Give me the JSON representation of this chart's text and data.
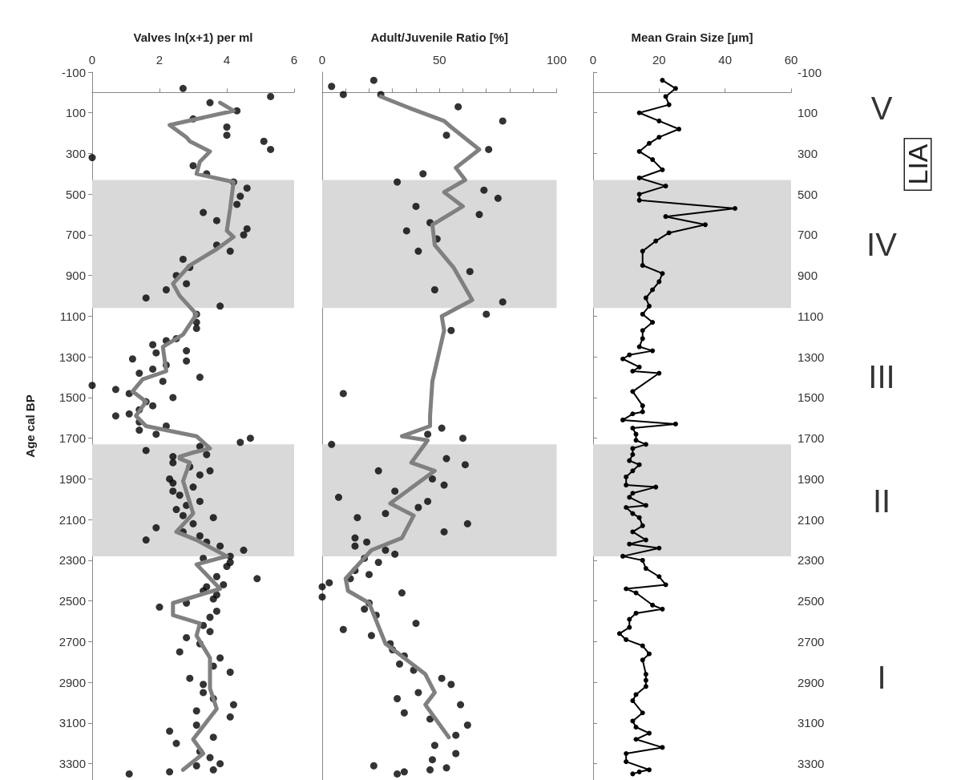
{
  "chart_data": [
    {
      "type": "scatter",
      "xlabel": "Valves ln(x+1) per ml",
      "ylabel": "Age cal BP",
      "xlim": [
        0,
        6
      ],
      "xticks": [
        0,
        2,
        4,
        6
      ],
      "ylim": [
        3380,
        -100
      ],
      "yticks": [
        -100,
        100,
        300,
        500,
        700,
        900,
        1100,
        1300,
        1500,
        1700,
        1900,
        2100,
        2300,
        2500,
        2700,
        2900,
        3100,
        3300
      ],
      "bands": [
        {
          "axis": "y",
          "from": 430,
          "to": 1060,
          "color": "#d9d9d9"
        },
        {
          "axis": "y",
          "from": 1730,
          "to": 2280,
          "color": "#d9d9d9"
        }
      ],
      "series": [
        {
          "marker": "circle",
          "color": "#000000",
          "x": [
            2.7,
            5.3,
            3.5,
            4.3,
            3.0,
            4.0,
            4.0,
            5.1,
            5.3,
            0,
            3.0,
            3.4,
            4.2,
            4.6,
            4.4,
            4.3,
            3.3,
            3.7,
            4.6,
            4.5,
            3.7,
            4.1,
            2.7,
            2.9,
            2.5,
            2.8,
            2.2,
            1.6,
            3.8,
            3.1,
            3.1,
            3.1,
            2.5,
            2.2,
            1.8,
            2.8,
            1.9,
            1.2,
            2.8,
            2.2,
            1.8,
            1.4,
            3.2,
            2.1,
            0,
            0.7,
            1.1,
            2.4,
            1.6,
            1.8,
            1.4,
            1.1,
            0.7,
            1.4,
            2.2,
            1.4,
            1.9,
            4.7,
            4.4,
            3.2,
            1.6,
            3.4,
            2.4,
            2.4,
            2.9,
            3.5,
            3.2,
            2.3,
            2.4,
            3.0,
            2.4,
            2.6,
            3.2,
            2.8,
            2.5,
            2.7,
            3.6,
            3.0,
            1.9,
            2.7,
            3.2,
            1.6,
            3.4,
            3.8,
            4.5,
            4.1,
            3.3,
            4.1,
            4.0,
            3.7,
            4.9,
            3.9,
            3.4,
            3.3,
            3.7,
            3.6,
            2.8,
            2.0,
            3.7,
            3.5,
            3.3,
            3.5,
            2.8,
            3.2,
            2.6,
            3.8,
            3.6,
            4.1,
            2.9,
            3.3,
            3.3,
            3.6,
            4.2,
            3.1,
            4.1,
            3.1,
            2.3,
            3.6,
            2.5,
            3.2,
            3.5,
            3.8,
            3.1,
            3.6,
            2.3,
            1.1
          ],
          "values": [
            -20,
            20,
            50,
            90,
            130,
            170,
            210,
            240,
            280,
            320,
            360,
            400,
            440,
            470,
            510,
            550,
            590,
            630,
            670,
            700,
            750,
            780,
            820,
            860,
            900,
            940,
            970,
            1010,
            1050,
            1090,
            1130,
            1160,
            1210,
            1220,
            1240,
            1270,
            1280,
            1310,
            1320,
            1340,
            1360,
            1380,
            1400,
            1420,
            1440,
            1460,
            1480,
            1500,
            1520,
            1540,
            1560,
            1580,
            1590,
            1620,
            1640,
            1660,
            1680,
            1700,
            1720,
            1740,
            1760,
            1780,
            1790,
            1820,
            1840,
            1860,
            1880,
            1900,
            1920,
            1940,
            1960,
            1980,
            2010,
            2030,
            2050,
            2080,
            2090,
            2120,
            2140,
            2160,
            2180,
            2200,
            2210,
            2230,
            2250,
            2280,
            2290,
            2310,
            2330,
            2380,
            2390,
            2420,
            2430,
            2450,
            2470,
            2490,
            2510,
            2530,
            2550,
            2580,
            2620,
            2650,
            2680,
            2710,
            2750,
            2780,
            2820,
            2850,
            2880,
            2910,
            2950,
            2980,
            3010,
            3040,
            3070,
            3110,
            3140,
            3170,
            3200,
            3240,
            3270,
            3300,
            3310,
            3330,
            3340,
            3350
          ]
        },
        {
          "type": "line",
          "marker": "none",
          "color": "#808080",
          "x": [
            3.8,
            4.2,
            2.3,
            2.8,
            2.9,
            3.5,
            3.2,
            3.1,
            4.2,
            4.1,
            4.0,
            4.2,
            3.7,
            2.9,
            2.4,
            2.6,
            3.1,
            2.7,
            2.1,
            2.2,
            1.5,
            1.2,
            1.6,
            1.3,
            1.6,
            3.1,
            3.5,
            3.0,
            2.6,
            2.6,
            2.9,
            2.7,
            3.0,
            2.5,
            3.1,
            4.0,
            3.1,
            3.8,
            2.4,
            2.4,
            3.2,
            3.1,
            3.5,
            3.5,
            3.7,
            3.0,
            3.3,
            2.7
          ],
          "values": [
            50,
            90,
            160,
            220,
            240,
            290,
            340,
            400,
            440,
            570,
            680,
            710,
            770,
            850,
            940,
            1000,
            1090,
            1190,
            1250,
            1370,
            1410,
            1470,
            1520,
            1590,
            1640,
            1690,
            1750,
            1770,
            1790,
            1800,
            1820,
            1910,
            2070,
            2160,
            2200,
            2280,
            2320,
            2440,
            2510,
            2570,
            2610,
            2670,
            2780,
            2930,
            3030,
            3180,
            3250,
            3330
          ]
        }
      ]
    },
    {
      "type": "scatter",
      "xlabel": "Adult/Juvenile Ratio [%]",
      "xlim": [
        0,
        100
      ],
      "xticks": [
        0,
        {
          "value": 10,
          "label": null
        },
        {
          "value": 20,
          "label": null
        },
        {
          "value": 30,
          "label": null
        },
        {
          "value": 40,
          "label": null
        },
        50,
        {
          "value": 60,
          "label": null
        },
        {
          "value": 70,
          "label": null
        },
        {
          "value": 80,
          "label": null
        },
        {
          "value": 90,
          "label": null
        },
        100
      ],
      "ylim": [
        3380,
        -100
      ],
      "tick_labels": "x",
      "bands": [
        {
          "axis": "y",
          "from": 430,
          "to": 1060,
          "color": "#d9d9d9"
        },
        {
          "axis": "y",
          "from": 1730,
          "to": 2280,
          "color": "#d9d9d9"
        }
      ],
      "series": [
        {
          "marker": "circle",
          "color": "#000000",
          "x": [
            4,
            9,
            22,
            25,
            58,
            77,
            53,
            71,
            43,
            32,
            69,
            75,
            40,
            67,
            46,
            36,
            49,
            41,
            63,
            48,
            77,
            70,
            55,
            9,
            51,
            45,
            60,
            4,
            53,
            61,
            24,
            47,
            52,
            31,
            7,
            45,
            41,
            27,
            15,
            62,
            52,
            14,
            19,
            14,
            27,
            31,
            18,
            24,
            14,
            20,
            12,
            3,
            0,
            34,
            0,
            20,
            18,
            23,
            40,
            9,
            21,
            29,
            30,
            35,
            33,
            39,
            51,
            55,
            41,
            32,
            59,
            35,
            46,
            62,
            57,
            48,
            57,
            47,
            22,
            53,
            46,
            35,
            32
          ],
          "values": [
            -30,
            10,
            -60,
            10,
            70,
            140,
            210,
            280,
            400,
            440,
            480,
            520,
            560,
            600,
            640,
            680,
            720,
            780,
            880,
            970,
            1030,
            1090,
            1170,
            1480,
            1650,
            1680,
            1700,
            1730,
            1800,
            1830,
            1860,
            1900,
            1930,
            1960,
            1990,
            2010,
            2040,
            2070,
            2090,
            2120,
            2160,
            2190,
            2210,
            2230,
            2250,
            2270,
            2290,
            2310,
            2350,
            2370,
            2390,
            2410,
            2430,
            2460,
            2480,
            2510,
            2540,
            2570,
            2610,
            2640,
            2670,
            2710,
            2740,
            2770,
            2810,
            2840,
            2880,
            2910,
            2950,
            2980,
            3010,
            3050,
            3080,
            3110,
            3160,
            3210,
            3250,
            3280,
            3310,
            3320,
            3330,
            3340,
            3350
          ]
        },
        {
          "type": "line",
          "marker": "none",
          "color": "#808080",
          "x": [
            25,
            38,
            52,
            55,
            67,
            57,
            61,
            52,
            60,
            47,
            48,
            56,
            64,
            51,
            52,
            47,
            46,
            46,
            34,
            45,
            38,
            48,
            29,
            39,
            34,
            21,
            10,
            11,
            20,
            27,
            44,
            48,
            44,
            54
          ],
          "values": [
            20,
            80,
            140,
            170,
            280,
            370,
            430,
            490,
            560,
            650,
            750,
            860,
            1020,
            1100,
            1170,
            1420,
            1590,
            1640,
            1690,
            1710,
            1820,
            1860,
            2020,
            2080,
            2190,
            2250,
            2390,
            2450,
            2510,
            2710,
            2860,
            2950,
            3010,
            3170
          ]
        }
      ]
    },
    {
      "type": "line",
      "xlabel": "Mean Grain Size [µm]",
      "xlim": [
        0,
        60
      ],
      "xticks": [
        0,
        20,
        40,
        60
      ],
      "ylim": [
        3380,
        -100
      ],
      "yticks": [
        -100,
        100,
        300,
        500,
        700,
        900,
        1100,
        1300,
        1500,
        1700,
        1900,
        2100,
        2300,
        2500,
        2700,
        2900,
        3100,
        3300
      ],
      "bands": [
        {
          "axis": "y",
          "from": 430,
          "to": 1060,
          "color": "#d9d9d9"
        },
        {
          "axis": "y",
          "from": 1730,
          "to": 2280,
          "color": "#d9d9d9"
        }
      ],
      "annotations": [
        "V",
        "IV",
        "III",
        "II",
        "I",
        "LIA"
      ],
      "series": [
        {
          "marker": "circle",
          "color": "#000000",
          "x": [
            21,
            25,
            22,
            23,
            14,
            20,
            26,
            20,
            17,
            14,
            18,
            21,
            14,
            22,
            14,
            14,
            43,
            22,
            34,
            23,
            19,
            15,
            15,
            21,
            20,
            18,
            16,
            17,
            15,
            18,
            15,
            15,
            14,
            18,
            11,
            9,
            14,
            12,
            20,
            12,
            15,
            15,
            12,
            9,
            25,
            12,
            13,
            13,
            16,
            12,
            12,
            11,
            14,
            12,
            10,
            10,
            19,
            12,
            11,
            16,
            10,
            12,
            14,
            15,
            12,
            16,
            11,
            20,
            9,
            15,
            16,
            20,
            22,
            10,
            13,
            18,
            21,
            13,
            11,
            11,
            8,
            10,
            15,
            17,
            15,
            16,
            16,
            16,
            13,
            12,
            15,
            12,
            13,
            17,
            13,
            21,
            10,
            10,
            17,
            14,
            12
          ],
          "values": [
            -60,
            -20,
            20,
            60,
            100,
            140,
            180,
            220,
            250,
            290,
            330,
            380,
            420,
            460,
            500,
            530,
            570,
            610,
            650,
            690,
            730,
            780,
            850,
            890,
            930,
            970,
            1010,
            1050,
            1090,
            1130,
            1170,
            1210,
            1250,
            1270,
            1290,
            1310,
            1350,
            1370,
            1380,
            1470,
            1540,
            1570,
            1580,
            1610,
            1630,
            1650,
            1680,
            1710,
            1730,
            1750,
            1780,
            1810,
            1830,
            1860,
            1890,
            1930,
            1940,
            1970,
            1990,
            2030,
            2040,
            2070,
            2090,
            2130,
            2160,
            2200,
            2220,
            2240,
            2280,
            2300,
            2340,
            2380,
            2420,
            2440,
            2460,
            2520,
            2540,
            2560,
            2590,
            2630,
            2660,
            2690,
            2720,
            2760,
            2790,
            2860,
            2890,
            2920,
            2960,
            2990,
            3050,
            3090,
            3120,
            3150,
            3180,
            3220,
            3250,
            3290,
            3330,
            3340,
            3350
          ]
        }
      ]
    }
  ]
}
